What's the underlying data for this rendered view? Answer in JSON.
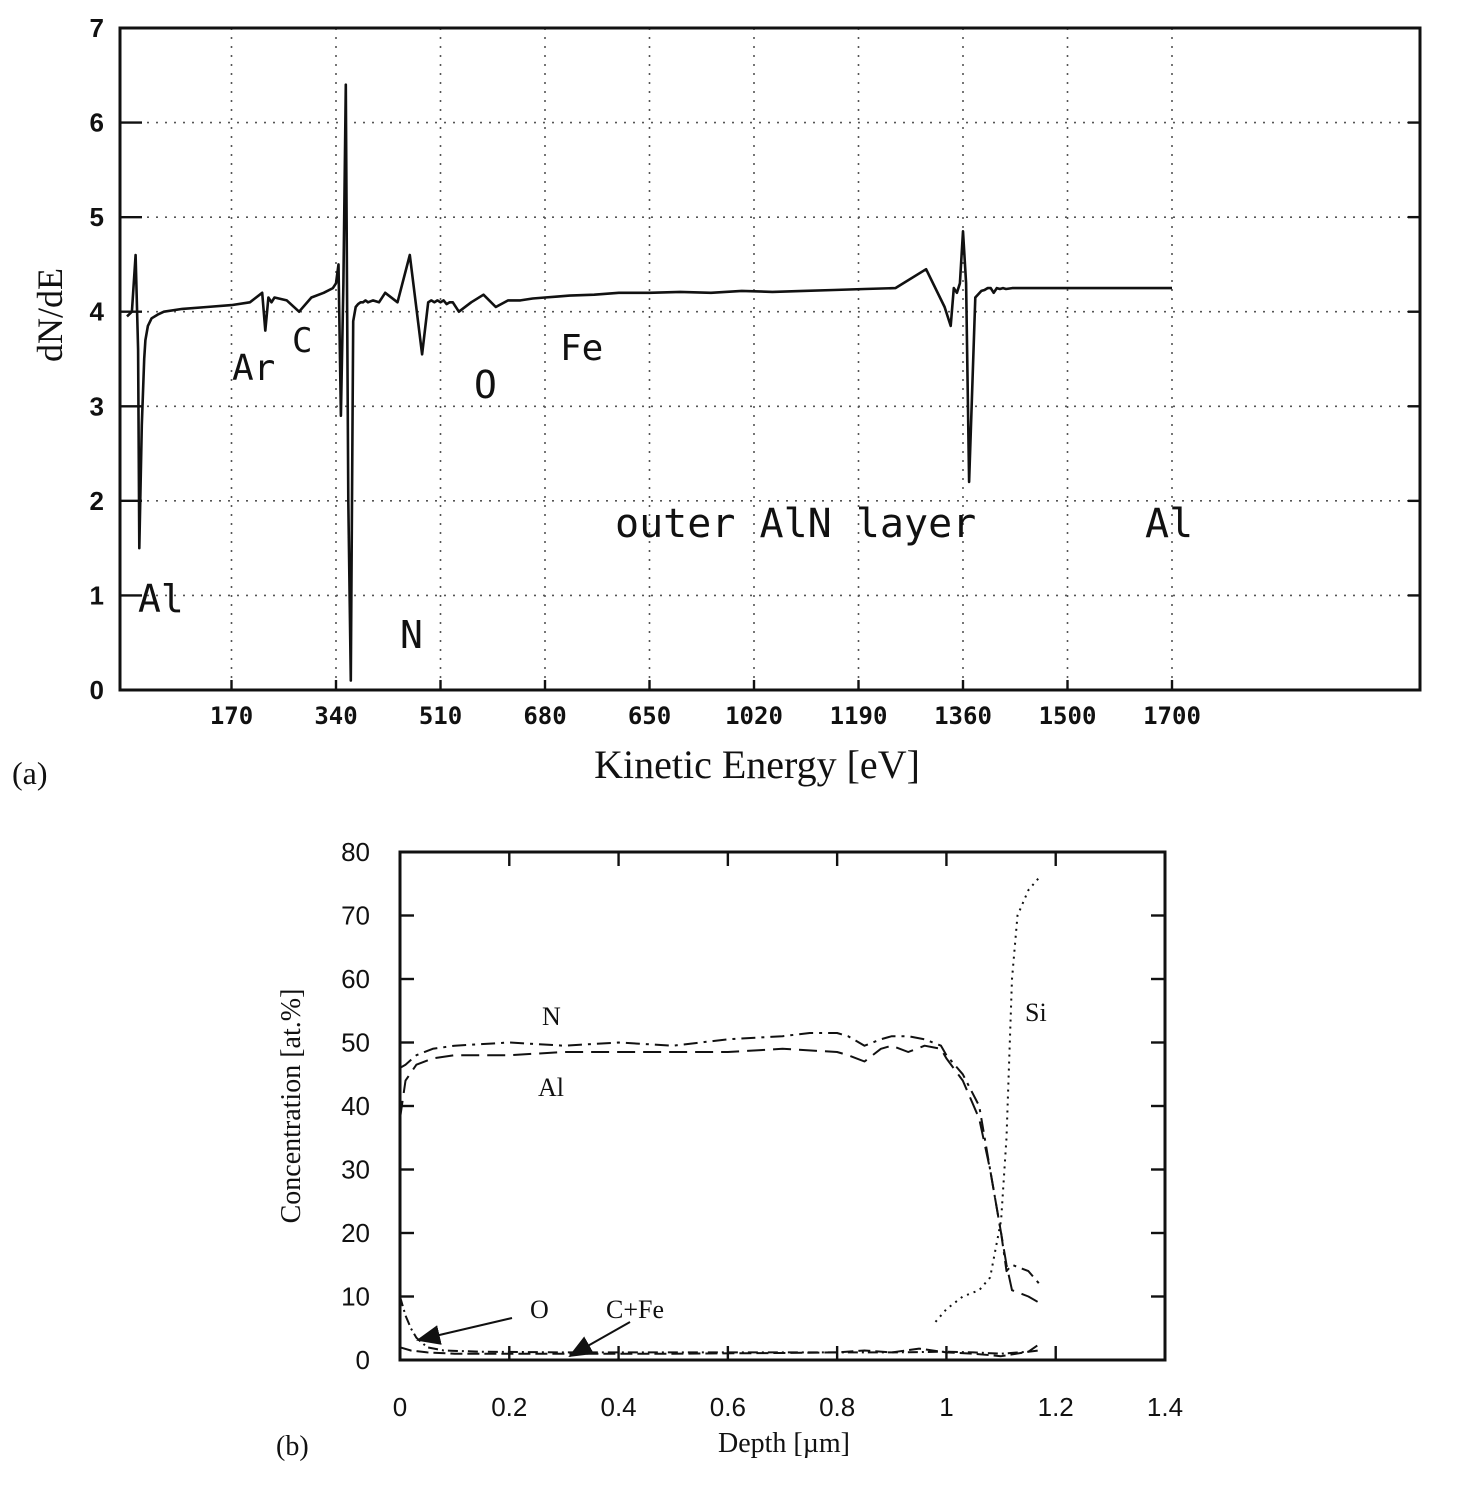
{
  "chart_data": [
    {
      "type": "line",
      "panel_label": "(a)",
      "xlabel": "Kinetic Energy [eV]",
      "ylabel": "dN/dE",
      "ylim": [
        0,
        7
      ],
      "yticks": [
        "0",
        "1",
        "2",
        "3",
        "4",
        "5",
        "6",
        "7"
      ],
      "xtick_labels": [
        "170",
        "340",
        "510",
        "680",
        "650",
        "1020",
        "1190",
        "1360",
        "1500",
        "1700"
      ],
      "grid": true,
      "annotations": [
        "Al",
        "Ar",
        "C",
        "N",
        "O",
        "Fe",
        "outer AlN layer",
        "Al"
      ],
      "series": [
        {
          "x": [
            0,
            8,
            14,
            18,
            20,
            24,
            28,
            30,
            34,
            40,
            50,
            60,
            90,
            130,
            170,
            200,
            220,
            225,
            230,
            235,
            240,
            260,
            280,
            300,
            320,
            335,
            340,
            344,
            348,
            352,
            356,
            360,
            364,
            368,
            372,
            376,
            380,
            384,
            388,
            392,
            400,
            410,
            420,
            440,
            460,
            480,
            490,
            495,
            500,
            505,
            510,
            515,
            520,
            525,
            530,
            540,
            560,
            580,
            600,
            620,
            640,
            660,
            680,
            700,
            720,
            760,
            800,
            850,
            900,
            950,
            1000,
            1050,
            1100,
            1150,
            1200,
            1250,
            1300,
            1330,
            1340,
            1345,
            1350,
            1355,
            1360,
            1365,
            1370,
            1380,
            1390,
            1395,
            1400,
            1405,
            1410,
            1415,
            1420,
            1425,
            1430,
            1440,
            1460,
            1480,
            1500,
            1520,
            1540,
            1560,
            1580,
            1600,
            1630,
            1660,
            1700
          ],
          "y": [
            3.95,
            4.0,
            4.6,
            3.6,
            1.5,
            2.8,
            3.5,
            3.7,
            3.85,
            3.93,
            3.97,
            4.0,
            4.03,
            4.05,
            4.07,
            4.1,
            4.2,
            3.8,
            4.15,
            4.1,
            4.15,
            4.12,
            4.0,
            4.15,
            4.2,
            4.25,
            4.3,
            4.5,
            2.9,
            4.3,
            6.4,
            2.0,
            0.1,
            3.9,
            4.05,
            4.08,
            4.1,
            4.1,
            4.12,
            4.1,
            4.12,
            4.1,
            4.2,
            4.1,
            4.6,
            3.55,
            4.1,
            4.12,
            4.1,
            4.12,
            4.1,
            4.12,
            4.08,
            4.1,
            4.1,
            4.0,
            4.1,
            4.18,
            4.05,
            4.12,
            4.12,
            4.14,
            4.15,
            4.16,
            4.17,
            4.18,
            4.2,
            4.2,
            4.21,
            4.2,
            4.22,
            4.21,
            4.22,
            4.23,
            4.24,
            4.25,
            4.45,
            4.05,
            3.85,
            4.25,
            4.2,
            4.3,
            4.85,
            4.3,
            2.2,
            4.15,
            4.22,
            4.23,
            4.25,
            4.25,
            4.2,
            4.25,
            4.24,
            4.25,
            4.24,
            4.25,
            4.25,
            4.25,
            4.25,
            4.25,
            4.25,
            4.25,
            4.25,
            4.25,
            4.25,
            4.25,
            4.25
          ]
        }
      ]
    },
    {
      "type": "line",
      "panel_label": "(b)",
      "xlabel": "Depth [µm]",
      "ylabel": "Concentration [at.%]",
      "xlim": [
        0,
        1.4
      ],
      "ylim": [
        0,
        80
      ],
      "xticks": [
        "0",
        "0.2",
        "0.4",
        "0.6",
        "0.8",
        "1",
        "1.2",
        "1.4"
      ],
      "yticks": [
        "0",
        "10",
        "20",
        "30",
        "40",
        "50",
        "60",
        "70",
        "80"
      ],
      "grid": false,
      "annotations": [
        "O",
        "C+Fe"
      ],
      "series": [
        {
          "name": "N",
          "x": [
            0,
            0.01,
            0.03,
            0.06,
            0.1,
            0.2,
            0.3,
            0.4,
            0.5,
            0.6,
            0.7,
            0.75,
            0.8,
            0.82,
            0.85,
            0.88,
            0.9,
            0.93,
            0.96,
            0.99,
            1.0,
            1.03,
            1.06,
            1.08,
            1.1,
            1.11,
            1.12,
            1.15,
            1.17
          ],
          "y": [
            46,
            46.5,
            48,
            49,
            49.5,
            50,
            49.5,
            50,
            49.5,
            50.5,
            51,
            51.5,
            51.5,
            51,
            49.5,
            50.5,
            51,
            51,
            50.5,
            49.5,
            48,
            45,
            40,
            30,
            20,
            14,
            15,
            14,
            12
          ]
        },
        {
          "name": "Al",
          "x": [
            0,
            0.01,
            0.03,
            0.06,
            0.1,
            0.2,
            0.3,
            0.4,
            0.5,
            0.6,
            0.7,
            0.8,
            0.82,
            0.85,
            0.88,
            0.9,
            0.93,
            0.96,
            0.99,
            1.0,
            1.03,
            1.06,
            1.08,
            1.1,
            1.11,
            1.12,
            1.15,
            1.17
          ],
          "y": [
            38,
            44,
            46.5,
            47.5,
            48,
            48,
            48.5,
            48.5,
            48.5,
            48.5,
            49,
            48.5,
            48,
            47,
            49,
            49.5,
            48.5,
            49.5,
            49,
            47.5,
            44,
            38,
            30,
            20,
            15,
            11,
            10,
            9
          ]
        },
        {
          "name": "Si",
          "x": [
            0.98,
            1.0,
            1.03,
            1.06,
            1.08,
            1.1,
            1.11,
            1.12,
            1.13,
            1.15,
            1.17
          ],
          "y": [
            6,
            8,
            10,
            11,
            13,
            22,
            35,
            60,
            70,
            74,
            76
          ]
        },
        {
          "name": "O",
          "x": [
            0,
            0.01,
            0.02,
            0.03,
            0.05,
            0.08,
            0.15,
            0.3,
            0.5,
            0.7,
            0.9,
            1.0,
            1.05,
            1.1,
            1.15,
            1.17
          ],
          "y": [
            10,
            7,
            5,
            3.5,
            2,
            1.5,
            1.3,
            1.2,
            1.2,
            1.2,
            1.2,
            1.3,
            1.2,
            1.0,
            1.3,
            1.5
          ]
        },
        {
          "name": "C+Fe",
          "x": [
            0,
            0.02,
            0.05,
            0.1,
            0.2,
            0.3,
            0.5,
            0.7,
            0.8,
            0.85,
            0.9,
            0.95,
            1.0,
            1.05,
            1.1,
            1.15,
            1.17
          ],
          "y": [
            2,
            1.5,
            1.2,
            1.0,
            1.0,
            1.0,
            1.0,
            1.1,
            1.2,
            1.5,
            1.2,
            1.8,
            1.2,
            1.0,
            0.6,
            1.3,
            2.5
          ]
        }
      ]
    }
  ]
}
